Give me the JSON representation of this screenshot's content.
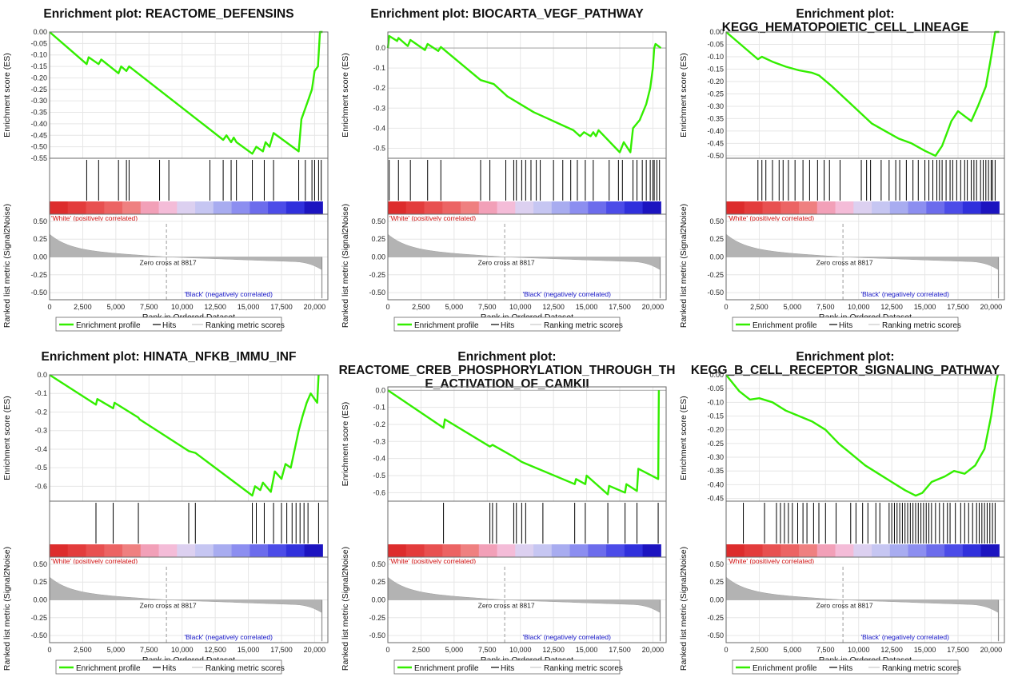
{
  "chart_data": [
    {
      "type": "line",
      "title": [
        "Enrichment plot: REACTOME_DEFENSINS"
      ],
      "ylabel": "Enrichment score (ES)",
      "ylim": [
        -0.55,
        0.0
      ],
      "yticks": [
        "0.00",
        "-0.05",
        "-0.10",
        "-0.15",
        "-0.20",
        "-0.25",
        "-0.30",
        "-0.35",
        "-0.40",
        "-0.45",
        "-0.50",
        "-0.55"
      ],
      "points": [
        [
          0,
          0
        ],
        [
          2800,
          -0.14
        ],
        [
          2950,
          -0.11
        ],
        [
          3700,
          -0.14
        ],
        [
          3900,
          -0.12
        ],
        [
          5200,
          -0.18
        ],
        [
          5400,
          -0.15
        ],
        [
          5800,
          -0.17
        ],
        [
          6000,
          -0.15
        ],
        [
          12000,
          -0.42
        ],
        [
          13100,
          -0.47
        ],
        [
          13350,
          -0.45
        ],
        [
          13700,
          -0.48
        ],
        [
          13900,
          -0.46
        ],
        [
          14100,
          -0.48
        ],
        [
          15300,
          -0.53
        ],
        [
          15600,
          -0.5
        ],
        [
          16100,
          -0.52
        ],
        [
          16300,
          -0.48
        ],
        [
          16600,
          -0.5
        ],
        [
          16900,
          -0.44
        ],
        [
          18800,
          -0.52
        ],
        [
          19000,
          -0.38
        ],
        [
          19500,
          -0.3
        ],
        [
          19800,
          -0.25
        ],
        [
          20000,
          -0.17
        ],
        [
          20250,
          -0.15
        ],
        [
          20400,
          0.0
        ],
        [
          20600,
          0.0
        ]
      ],
      "hits": [
        2800,
        3700,
        5200,
        5800,
        6000,
        8300,
        9000,
        12100,
        13100,
        13700,
        14100,
        15300,
        16200,
        16900,
        18800,
        19300,
        19800,
        20000,
        20300,
        20500
      ],
      "bottom_ylabel": "Ranked list metric (Signal2Noise)",
      "bottom_ylim": [
        -0.6,
        0.6
      ],
      "bottom_yticks": [
        "0.50",
        "0.25",
        "0.00",
        "-0.25",
        "-0.50"
      ],
      "xlabel": "Rank in Ordered Dataset",
      "xlim": [
        0,
        21000
      ],
      "xticks": [
        "0",
        "2,500",
        "5,000",
        "7,500",
        "10,000",
        "12,500",
        "15,000",
        "17,500",
        "20,000"
      ],
      "zero_cross": 8817,
      "zero_cross_label": "Zero cross at 8817",
      "pos_label": "'White' (positively correlated)",
      "neg_label": "'Black' (negatively correlated)",
      "legend": [
        "Enrichment profile",
        "Hits",
        "Ranking metric scores"
      ]
    },
    {
      "type": "line",
      "title": [
        "Enrichment plot: BIOCARTA_VEGF_PATHWAY"
      ],
      "ylabel": "Enrichment score (ES)",
      "ylim": [
        -0.55,
        0.08
      ],
      "yticks": [
        "0.0",
        "-0.1",
        "-0.2",
        "-0.3",
        "-0.4",
        "-0.5"
      ],
      "points": [
        [
          0,
          0
        ],
        [
          100,
          0.06
        ],
        [
          700,
          0.035
        ],
        [
          800,
          0.05
        ],
        [
          1500,
          0.01
        ],
        [
          1700,
          0.04
        ],
        [
          2800,
          -0.01
        ],
        [
          3000,
          0.02
        ],
        [
          3800,
          -0.015
        ],
        [
          4000,
          0.005
        ],
        [
          7000,
          -0.16
        ],
        [
          8000,
          -0.18
        ],
        [
          9000,
          -0.24
        ],
        [
          10000,
          -0.28
        ],
        [
          11000,
          -0.32
        ],
        [
          12000,
          -0.35
        ],
        [
          13000,
          -0.38
        ],
        [
          14000,
          -0.41
        ],
        [
          14500,
          -0.44
        ],
        [
          14800,
          -0.42
        ],
        [
          15300,
          -0.44
        ],
        [
          15500,
          -0.42
        ],
        [
          15700,
          -0.44
        ],
        [
          15900,
          -0.41
        ],
        [
          17500,
          -0.52
        ],
        [
          17800,
          -0.47
        ],
        [
          18300,
          -0.52
        ],
        [
          18500,
          -0.4
        ],
        [
          19000,
          -0.36
        ],
        [
          19500,
          -0.28
        ],
        [
          19800,
          -0.2
        ],
        [
          20000,
          -0.1
        ],
        [
          20100,
          0.0
        ],
        [
          20200,
          0.02
        ],
        [
          20600,
          0.0
        ]
      ],
      "hits": [
        100,
        800,
        1700,
        3000,
        4000,
        7000,
        7700,
        8900,
        9500,
        9700,
        10100,
        10400,
        10800,
        11200,
        11500,
        12500,
        13200,
        13800,
        14300,
        14900,
        15500,
        16700,
        17400,
        17700,
        18500,
        18800,
        19200,
        19500,
        19800,
        20000,
        20100,
        20300,
        20500
      ],
      "bottom_ylabel": "Ranked list metric (Signal2Noise)",
      "bottom_ylim": [
        -0.6,
        0.6
      ],
      "bottom_yticks": [
        "0.50",
        "0.25",
        "0.00",
        "-0.25",
        "-0.50"
      ],
      "xlabel": "Rank in Ordered Dataset",
      "xlim": [
        0,
        21000
      ],
      "xticks": [
        "0",
        "2,500",
        "5,000",
        "7,500",
        "10,000",
        "12,500",
        "15,000",
        "17,500",
        "20,000"
      ],
      "zero_cross": 8817,
      "zero_cross_label": "Zero cross at 8817",
      "pos_label": "'White' (positively correlated)",
      "neg_label": "'Black' (negatively correlated)",
      "legend": [
        "Enrichment profile",
        "Hits",
        "Ranking metric scores"
      ]
    },
    {
      "type": "line",
      "title": [
        "Enrichment plot:",
        "KEGG_HEMATOPOIETIC_CELL_LINEAGE"
      ],
      "ylabel": "Enrichment score (ES)",
      "ylim": [
        -0.51,
        0.0
      ],
      "yticks": [
        "0.00",
        "-0.05",
        "-0.10",
        "-0.15",
        "-0.20",
        "-0.25",
        "-0.30",
        "-0.35",
        "-0.40",
        "-0.45",
        "-0.50"
      ],
      "points": [
        [
          0,
          0
        ],
        [
          2400,
          -0.11
        ],
        [
          2700,
          -0.1
        ],
        [
          3500,
          -0.12
        ],
        [
          4500,
          -0.14
        ],
        [
          5500,
          -0.155
        ],
        [
          6500,
          -0.165
        ],
        [
          7000,
          -0.175
        ],
        [
          8000,
          -0.22
        ],
        [
          9000,
          -0.27
        ],
        [
          10000,
          -0.32
        ],
        [
          11000,
          -0.37
        ],
        [
          12000,
          -0.4
        ],
        [
          13000,
          -0.43
        ],
        [
          14000,
          -0.45
        ],
        [
          15000,
          -0.48
        ],
        [
          15800,
          -0.5
        ],
        [
          16300,
          -0.46
        ],
        [
          17000,
          -0.36
        ],
        [
          17500,
          -0.32
        ],
        [
          18000,
          -0.34
        ],
        [
          18500,
          -0.36
        ],
        [
          19000,
          -0.3
        ],
        [
          19600,
          -0.22
        ],
        [
          20000,
          -0.1
        ],
        [
          20300,
          0.0
        ],
        [
          20600,
          0.0
        ]
      ],
      "hits": [
        2400,
        2700,
        3000,
        3500,
        4000,
        4300,
        4700,
        5200,
        5800,
        6300,
        6900,
        7400,
        7800,
        8600,
        10200,
        10600,
        10900,
        11700,
        12300,
        12800,
        13100,
        13600,
        14100,
        14500,
        15000,
        15300,
        15600,
        15900,
        16100,
        16300,
        16600,
        16900,
        17100,
        17400,
        17700,
        18000,
        18200,
        18500,
        18700,
        18900,
        19200,
        19400,
        19600,
        19800,
        20000,
        20100,
        20300
      ],
      "bottom_ylabel": "Ranked list metric (Signal2Noise)",
      "bottom_ylim": [
        -0.6,
        0.6
      ],
      "bottom_yticks": [
        "0.50",
        "0.25",
        "0.00",
        "-0.25",
        "-0.50"
      ],
      "xlabel": "Rank in Ordered Dataset",
      "xlim": [
        0,
        21000
      ],
      "xticks": [
        "0",
        "2,500",
        "5,000",
        "7,500",
        "10,000",
        "12,500",
        "15,000",
        "17,500",
        "20,000"
      ],
      "zero_cross": 8817,
      "zero_cross_label": "Zero cross at 8817",
      "pos_label": "'White' (positively correlated)",
      "neg_label": "'Black' (negatively correlated)",
      "legend": [
        "Enrichment profile",
        "Hits",
        "Ranking metric scores"
      ]
    },
    {
      "type": "line",
      "title": [
        "Enrichment plot: HINATA_NFKB_IMMU_INF"
      ],
      "ylabel": "Enrichment score (ES)",
      "ylim": [
        -0.68,
        0.0
      ],
      "yticks": [
        "0.0",
        "-0.1",
        "-0.2",
        "-0.3",
        "-0.4",
        "-0.5",
        "-0.6"
      ],
      "points": [
        [
          0,
          0
        ],
        [
          3500,
          -0.16
        ],
        [
          3600,
          -0.13
        ],
        [
          4800,
          -0.18
        ],
        [
          4900,
          -0.15
        ],
        [
          6700,
          -0.23
        ],
        [
          6800,
          -0.24
        ],
        [
          10500,
          -0.41
        ],
        [
          11000,
          -0.42
        ],
        [
          15300,
          -0.65
        ],
        [
          15500,
          -0.6
        ],
        [
          15900,
          -0.62
        ],
        [
          16100,
          -0.58
        ],
        [
          16700,
          -0.63
        ],
        [
          17000,
          -0.52
        ],
        [
          17500,
          -0.56
        ],
        [
          17800,
          -0.48
        ],
        [
          18200,
          -0.5
        ],
        [
          18500,
          -0.4
        ],
        [
          18800,
          -0.3
        ],
        [
          19100,
          -0.22
        ],
        [
          19400,
          -0.15
        ],
        [
          19700,
          -0.1
        ],
        [
          20200,
          -0.15
        ],
        [
          20300,
          0.0
        ]
      ],
      "hits": [
        3500,
        4800,
        6700,
        10500,
        11000,
        15300,
        15600,
        16200,
        16900,
        17500,
        17900,
        18300,
        18600,
        18900,
        19200,
        19500,
        20300
      ],
      "bottom_ylabel": "Ranked list metric (Signal2Noise)",
      "bottom_ylim": [
        -0.6,
        0.6
      ],
      "bottom_yticks": [
        "0.50",
        "0.25",
        "0.00",
        "-0.25",
        "-0.50"
      ],
      "xlabel": "Rank in Ordered Dataset",
      "xlim": [
        0,
        21000
      ],
      "xticks": [
        "0",
        "2,500",
        "5,000",
        "7,500",
        "10,000",
        "12,500",
        "15,000",
        "17,500",
        "20,000"
      ],
      "zero_cross": 8817,
      "zero_cross_label": "Zero cross at 8817",
      "pos_label": "'White' (positively correlated)",
      "neg_label": "'Black' (negatively correlated)",
      "legend": [
        "Enrichment profile",
        "Hits",
        "Ranking metric scores"
      ]
    },
    {
      "type": "line",
      "title": [
        "Enrichment plot:",
        "REACTOME_CREB_PHOSPHORYLATION_THROUGH_TH",
        "E_ACTIVATION_OF_CAMKII"
      ],
      "ylabel": "Enrichment score (ES)",
      "ylim": [
        -0.65,
        0.02
      ],
      "yticks": [
        "0.0",
        "-0.1",
        "-0.2",
        "-0.3",
        "-0.4",
        "-0.5",
        "-0.6"
      ],
      "points": [
        [
          0,
          0
        ],
        [
          4200,
          -0.22
        ],
        [
          4300,
          -0.17
        ],
        [
          7700,
          -0.33
        ],
        [
          7900,
          -0.32
        ],
        [
          9500,
          -0.39
        ],
        [
          9700,
          -0.4
        ],
        [
          10100,
          -0.42
        ],
        [
          10400,
          -0.43
        ],
        [
          14100,
          -0.55
        ],
        [
          14200,
          -0.52
        ],
        [
          14900,
          -0.55
        ],
        [
          15000,
          -0.5
        ],
        [
          16600,
          -0.61
        ],
        [
          16700,
          -0.56
        ],
        [
          17900,
          -0.6
        ],
        [
          18000,
          -0.55
        ],
        [
          18800,
          -0.59
        ],
        [
          18900,
          -0.46
        ],
        [
          20400,
          -0.52
        ],
        [
          20450,
          0.0
        ]
      ],
      "hits": [
        4200,
        7700,
        7900,
        8200,
        9500,
        9700,
        10100,
        10400,
        11700,
        14100,
        14900,
        16600,
        17900,
        18800,
        20400
      ],
      "bottom_ylabel": "Ranked list metric (Signal2Noise)",
      "bottom_ylim": [
        -0.6,
        0.6
      ],
      "bottom_yticks": [
        "0.50",
        "0.25",
        "0.00",
        "-0.25",
        "-0.50"
      ],
      "xlabel": "Rank in Ordered Dataset",
      "xlim": [
        0,
        21000
      ],
      "xticks": [
        "0",
        "2,500",
        "5,000",
        "7,500",
        "10,000",
        "12,500",
        "15,000",
        "17,500",
        "20,000"
      ],
      "zero_cross": 8817,
      "zero_cross_label": "Zero cross at 8817",
      "pos_label": "'White' (positively correlated)",
      "neg_label": "'Black' (negatively correlated)",
      "legend": [
        "Enrichment profile",
        "Hits",
        "Ranking metric scores"
      ]
    },
    {
      "type": "line",
      "title": [
        "Enrichment plot:",
        "KEGG_B_CELL_RECEPTOR_SIGNALING_PATHWAY"
      ],
      "ylabel": "Enrichment score (ES)",
      "ylim": [
        -0.46,
        0.0
      ],
      "yticks": [
        "0.00",
        "-0.05",
        "-0.10",
        "-0.15",
        "-0.20",
        "-0.25",
        "-0.30",
        "-0.35",
        "-0.40",
        "-0.45"
      ],
      "points": [
        [
          0,
          0
        ],
        [
          1000,
          -0.06
        ],
        [
          1800,
          -0.09
        ],
        [
          2500,
          -0.085
        ],
        [
          3500,
          -0.1
        ],
        [
          4500,
          -0.13
        ],
        [
          5500,
          -0.15
        ],
        [
          6500,
          -0.17
        ],
        [
          7500,
          -0.2
        ],
        [
          8500,
          -0.25
        ],
        [
          9500,
          -0.29
        ],
        [
          10500,
          -0.33
        ],
        [
          11500,
          -0.36
        ],
        [
          12500,
          -0.39
        ],
        [
          13500,
          -0.42
        ],
        [
          14300,
          -0.44
        ],
        [
          14800,
          -0.43
        ],
        [
          15500,
          -0.39
        ],
        [
          16500,
          -0.37
        ],
        [
          17200,
          -0.35
        ],
        [
          18000,
          -0.36
        ],
        [
          18800,
          -0.33
        ],
        [
          19500,
          -0.27
        ],
        [
          20000,
          -0.15
        ],
        [
          20300,
          -0.05
        ],
        [
          20500,
          0.0
        ]
      ],
      "hits": [
        1300,
        2900,
        3800,
        4100,
        4400,
        4700,
        5000,
        5400,
        5800,
        6100,
        6600,
        7000,
        7500,
        8300,
        9400,
        9800,
        10300,
        10700,
        11300,
        11600,
        12300,
        12500,
        12700,
        12900,
        13100,
        13300,
        13500,
        13700,
        13900,
        14100,
        14300,
        14500,
        14700,
        14900,
        15100,
        15300,
        15500,
        15800,
        16100,
        16400,
        16700,
        16900,
        17300,
        17700,
        18000,
        18300,
        18600,
        18900,
        19100,
        19300,
        19500,
        19700,
        19900,
        20100,
        20300
      ],
      "bottom_ylabel": "Ranked list metric (Signal2Noise)",
      "bottom_ylim": [
        -0.6,
        0.6
      ],
      "bottom_yticks": [
        "0.50",
        "0.25",
        "0.00",
        "-0.25",
        "-0.50"
      ],
      "xlabel": "Rank in Ordered Dataset",
      "xlim": [
        0,
        21000
      ],
      "xticks": [
        "0",
        "2,500",
        "5,000",
        "7,500",
        "10,000",
        "12,500",
        "15,000",
        "17,500",
        "20,000"
      ],
      "zero_cross": 8817,
      "zero_cross_label": "Zero cross at 8817",
      "pos_label": "'White' (positively correlated)",
      "neg_label": "'Black' (negatively correlated)",
      "legend": [
        "Enrichment profile",
        "Hits",
        "Ranking metric scores"
      ]
    }
  ],
  "colors": {
    "profile": "#33ee00",
    "hits": "#000000",
    "metric_fill": "#b3b3b3",
    "grid": "#e6e6e6",
    "frame": "#6a6a6a",
    "zero_cross_line": "#9a9a9a"
  }
}
